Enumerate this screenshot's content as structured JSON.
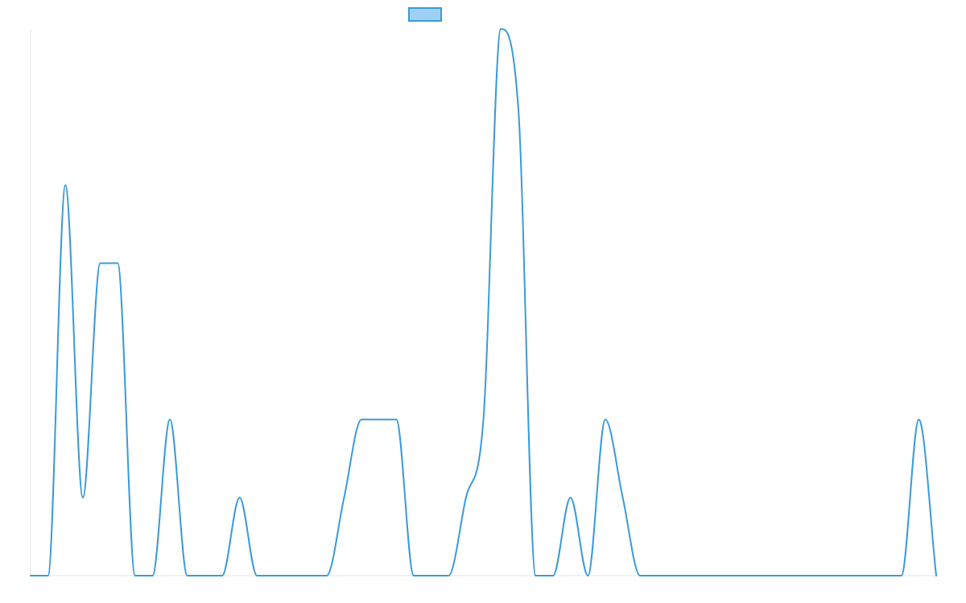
{
  "chart_data": {
    "type": "line",
    "title": "",
    "xlabel": "",
    "ylabel": "",
    "legend": {
      "placement": "top-center",
      "show_label": false
    },
    "grid": false,
    "ylim": [
      0,
      7
    ],
    "x": [
      0,
      1,
      2,
      3,
      4,
      5,
      6,
      7,
      8,
      9,
      10,
      11,
      12,
      13,
      14,
      15,
      16,
      17,
      18,
      19,
      20,
      21,
      22,
      23,
      24,
      25,
      26,
      27,
      28,
      29,
      30,
      31,
      32,
      33,
      34,
      35,
      36,
      37,
      38,
      39,
      40,
      41,
      42,
      43,
      44,
      45,
      46,
      47,
      48,
      49,
      50,
      51,
      52
    ],
    "series": [
      {
        "color": "#3a9ad9",
        "fill_color": "#9ed0f4",
        "values": [
          0,
          0,
          5,
          1,
          4,
          4,
          0,
          0,
          2,
          0,
          0,
          0,
          1,
          0,
          0,
          0,
          0,
          0,
          1,
          2,
          2,
          2,
          0,
          0,
          0,
          1,
          2,
          7,
          6,
          0,
          0,
          1,
          0,
          2,
          1,
          0,
          0,
          0,
          0,
          0,
          0,
          0,
          0,
          0,
          0,
          0,
          0,
          0,
          0,
          0,
          0,
          2,
          0
        ]
      }
    ]
  }
}
